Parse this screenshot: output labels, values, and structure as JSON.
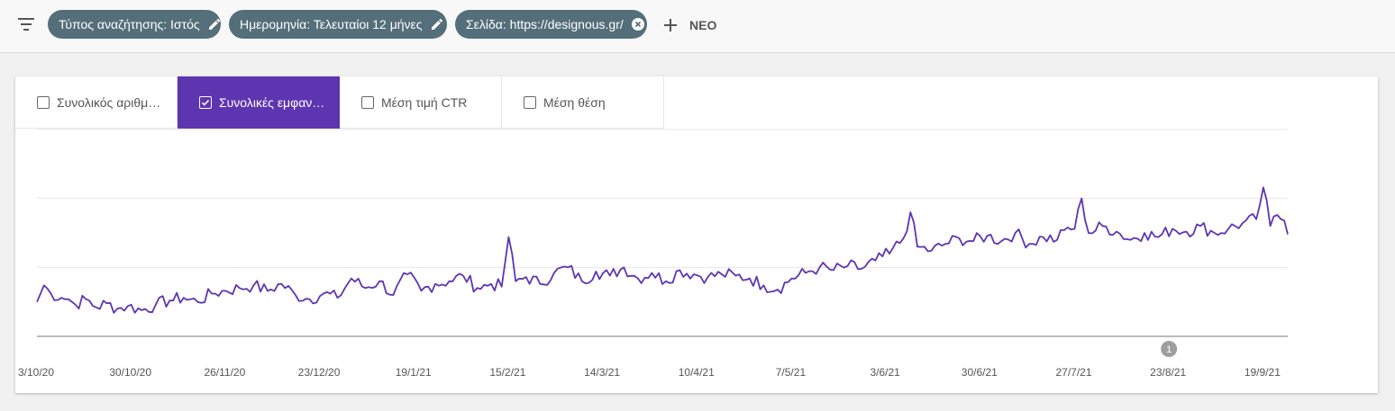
{
  "filters": {
    "chips": [
      {
        "label": "Τύπος αναζήτησης: Ιστός",
        "icon": "edit-icon"
      },
      {
        "label": "Ημερομηνία: Τελευταίοι 12 μήνες",
        "icon": "edit-icon"
      },
      {
        "label": "Σελίδα: https://designous.gr/",
        "icon": "clear-icon"
      }
    ],
    "new_label": "ΝΕΟ"
  },
  "metrics": {
    "tabs": [
      {
        "label": "Συνολικός αριθμ…",
        "checked": false
      },
      {
        "label": "Συνολικές εμφαν…",
        "checked": true
      },
      {
        "label": "Μέση τιμή CTR",
        "checked": false
      },
      {
        "label": "Μέση θέση",
        "checked": false
      }
    ]
  },
  "colors": {
    "accent": "#5e35b1",
    "chip": "#546e7a"
  },
  "chart_data": {
    "type": "line",
    "title": "",
    "xlabel": "",
    "ylabel": "",
    "x_tick_labels": [
      "3/10/20",
      "30/10/20",
      "26/11/20",
      "23/12/20",
      "19/1/21",
      "15/2/21",
      "14/3/21",
      "10/4/21",
      "7/5/21",
      "3/6/21",
      "30/6/21",
      "27/7/21",
      "23/8/21",
      "19/9/21"
    ],
    "x_start": "2020-10-03",
    "x_end": "2021-09-26",
    "grid": true,
    "y_axis_labels_shown": false,
    "annotation": {
      "label": "1",
      "date": "2021-08-23"
    },
    "series": [
      {
        "name": "",
        "color": "#5e35b1",
        "key_points": [
          [
            "2020-10-03",
            25
          ],
          [
            "2020-10-05",
            37
          ],
          [
            "2020-10-07",
            31
          ],
          [
            "2020-10-10",
            28
          ],
          [
            "2020-10-12",
            27
          ],
          [
            "2020-10-14",
            23
          ],
          [
            "2020-10-17",
            27
          ],
          [
            "2020-10-20",
            21
          ],
          [
            "2020-10-23",
            24
          ],
          [
            "2020-10-26",
            20
          ],
          [
            "2020-10-29",
            22
          ],
          [
            "2020-11-02",
            19
          ],
          [
            "2020-11-06",
            23
          ],
          [
            "2020-11-10",
            26
          ],
          [
            "2020-11-14",
            28
          ],
          [
            "2020-11-18",
            25
          ],
          [
            "2020-11-22",
            31
          ],
          [
            "2020-11-26",
            33
          ],
          [
            "2020-11-30",
            35
          ],
          [
            "2020-12-04",
            37
          ],
          [
            "2020-12-08",
            33
          ],
          [
            "2020-12-12",
            38
          ],
          [
            "2020-12-16",
            30
          ],
          [
            "2020-12-20",
            27
          ],
          [
            "2020-12-24",
            31
          ],
          [
            "2020-12-28",
            28
          ],
          [
            "2021-01-01",
            42
          ],
          [
            "2021-01-05",
            35
          ],
          [
            "2021-01-09",
            40
          ],
          [
            "2021-01-13",
            30
          ],
          [
            "2021-01-17",
            45
          ],
          [
            "2021-01-21",
            33
          ],
          [
            "2021-01-25",
            38
          ],
          [
            "2021-01-29",
            40
          ],
          [
            "2021-02-02",
            44
          ],
          [
            "2021-02-06",
            35
          ],
          [
            "2021-02-10",
            38
          ],
          [
            "2021-02-13",
            36
          ],
          [
            "2021-02-15",
            72
          ],
          [
            "2021-02-17",
            40
          ],
          [
            "2021-02-20",
            43
          ],
          [
            "2021-02-24",
            38
          ],
          [
            "2021-02-28",
            46
          ],
          [
            "2021-03-04",
            50
          ],
          [
            "2021-03-08",
            40
          ],
          [
            "2021-03-12",
            47
          ],
          [
            "2021-03-16",
            44
          ],
          [
            "2021-03-20",
            50
          ],
          [
            "2021-03-24",
            42
          ],
          [
            "2021-03-28",
            46
          ],
          [
            "2021-04-01",
            40
          ],
          [
            "2021-04-05",
            48
          ],
          [
            "2021-04-09",
            45
          ],
          [
            "2021-04-13",
            43
          ],
          [
            "2021-04-17",
            45
          ],
          [
            "2021-04-21",
            44
          ],
          [
            "2021-04-25",
            42
          ],
          [
            "2021-04-29",
            37
          ],
          [
            "2021-05-03",
            34
          ],
          [
            "2021-05-07",
            42
          ],
          [
            "2021-05-11",
            46
          ],
          [
            "2021-05-15",
            50
          ],
          [
            "2021-05-19",
            48
          ],
          [
            "2021-05-23",
            51
          ],
          [
            "2021-05-27",
            49
          ],
          [
            "2021-05-31",
            55
          ],
          [
            "2021-06-04",
            60
          ],
          [
            "2021-06-08",
            71
          ],
          [
            "2021-06-10",
            90
          ],
          [
            "2021-06-12",
            65
          ],
          [
            "2021-06-16",
            62
          ],
          [
            "2021-06-20",
            67
          ],
          [
            "2021-06-24",
            71
          ],
          [
            "2021-06-28",
            69
          ],
          [
            "2021-07-02",
            73
          ],
          [
            "2021-07-06",
            69
          ],
          [
            "2021-07-10",
            75
          ],
          [
            "2021-07-14",
            67
          ],
          [
            "2021-07-18",
            72
          ],
          [
            "2021-07-22",
            70
          ],
          [
            "2021-07-25",
            79
          ],
          [
            "2021-07-27",
            78
          ],
          [
            "2021-07-29",
            100
          ],
          [
            "2021-07-31",
            75
          ],
          [
            "2021-08-04",
            80
          ],
          [
            "2021-08-08",
            76
          ],
          [
            "2021-08-12",
            70
          ],
          [
            "2021-08-16",
            75
          ],
          [
            "2021-08-20",
            72
          ],
          [
            "2021-08-24",
            78
          ],
          [
            "2021-08-28",
            76
          ],
          [
            "2021-09-01",
            80
          ],
          [
            "2021-09-05",
            75
          ],
          [
            "2021-09-09",
            78
          ],
          [
            "2021-09-13",
            82
          ],
          [
            "2021-09-17",
            85
          ],
          [
            "2021-09-19",
            108
          ],
          [
            "2021-09-21",
            80
          ],
          [
            "2021-09-23",
            88
          ],
          [
            "2021-09-25",
            84
          ],
          [
            "2021-09-26",
            74
          ]
        ]
      }
    ]
  }
}
